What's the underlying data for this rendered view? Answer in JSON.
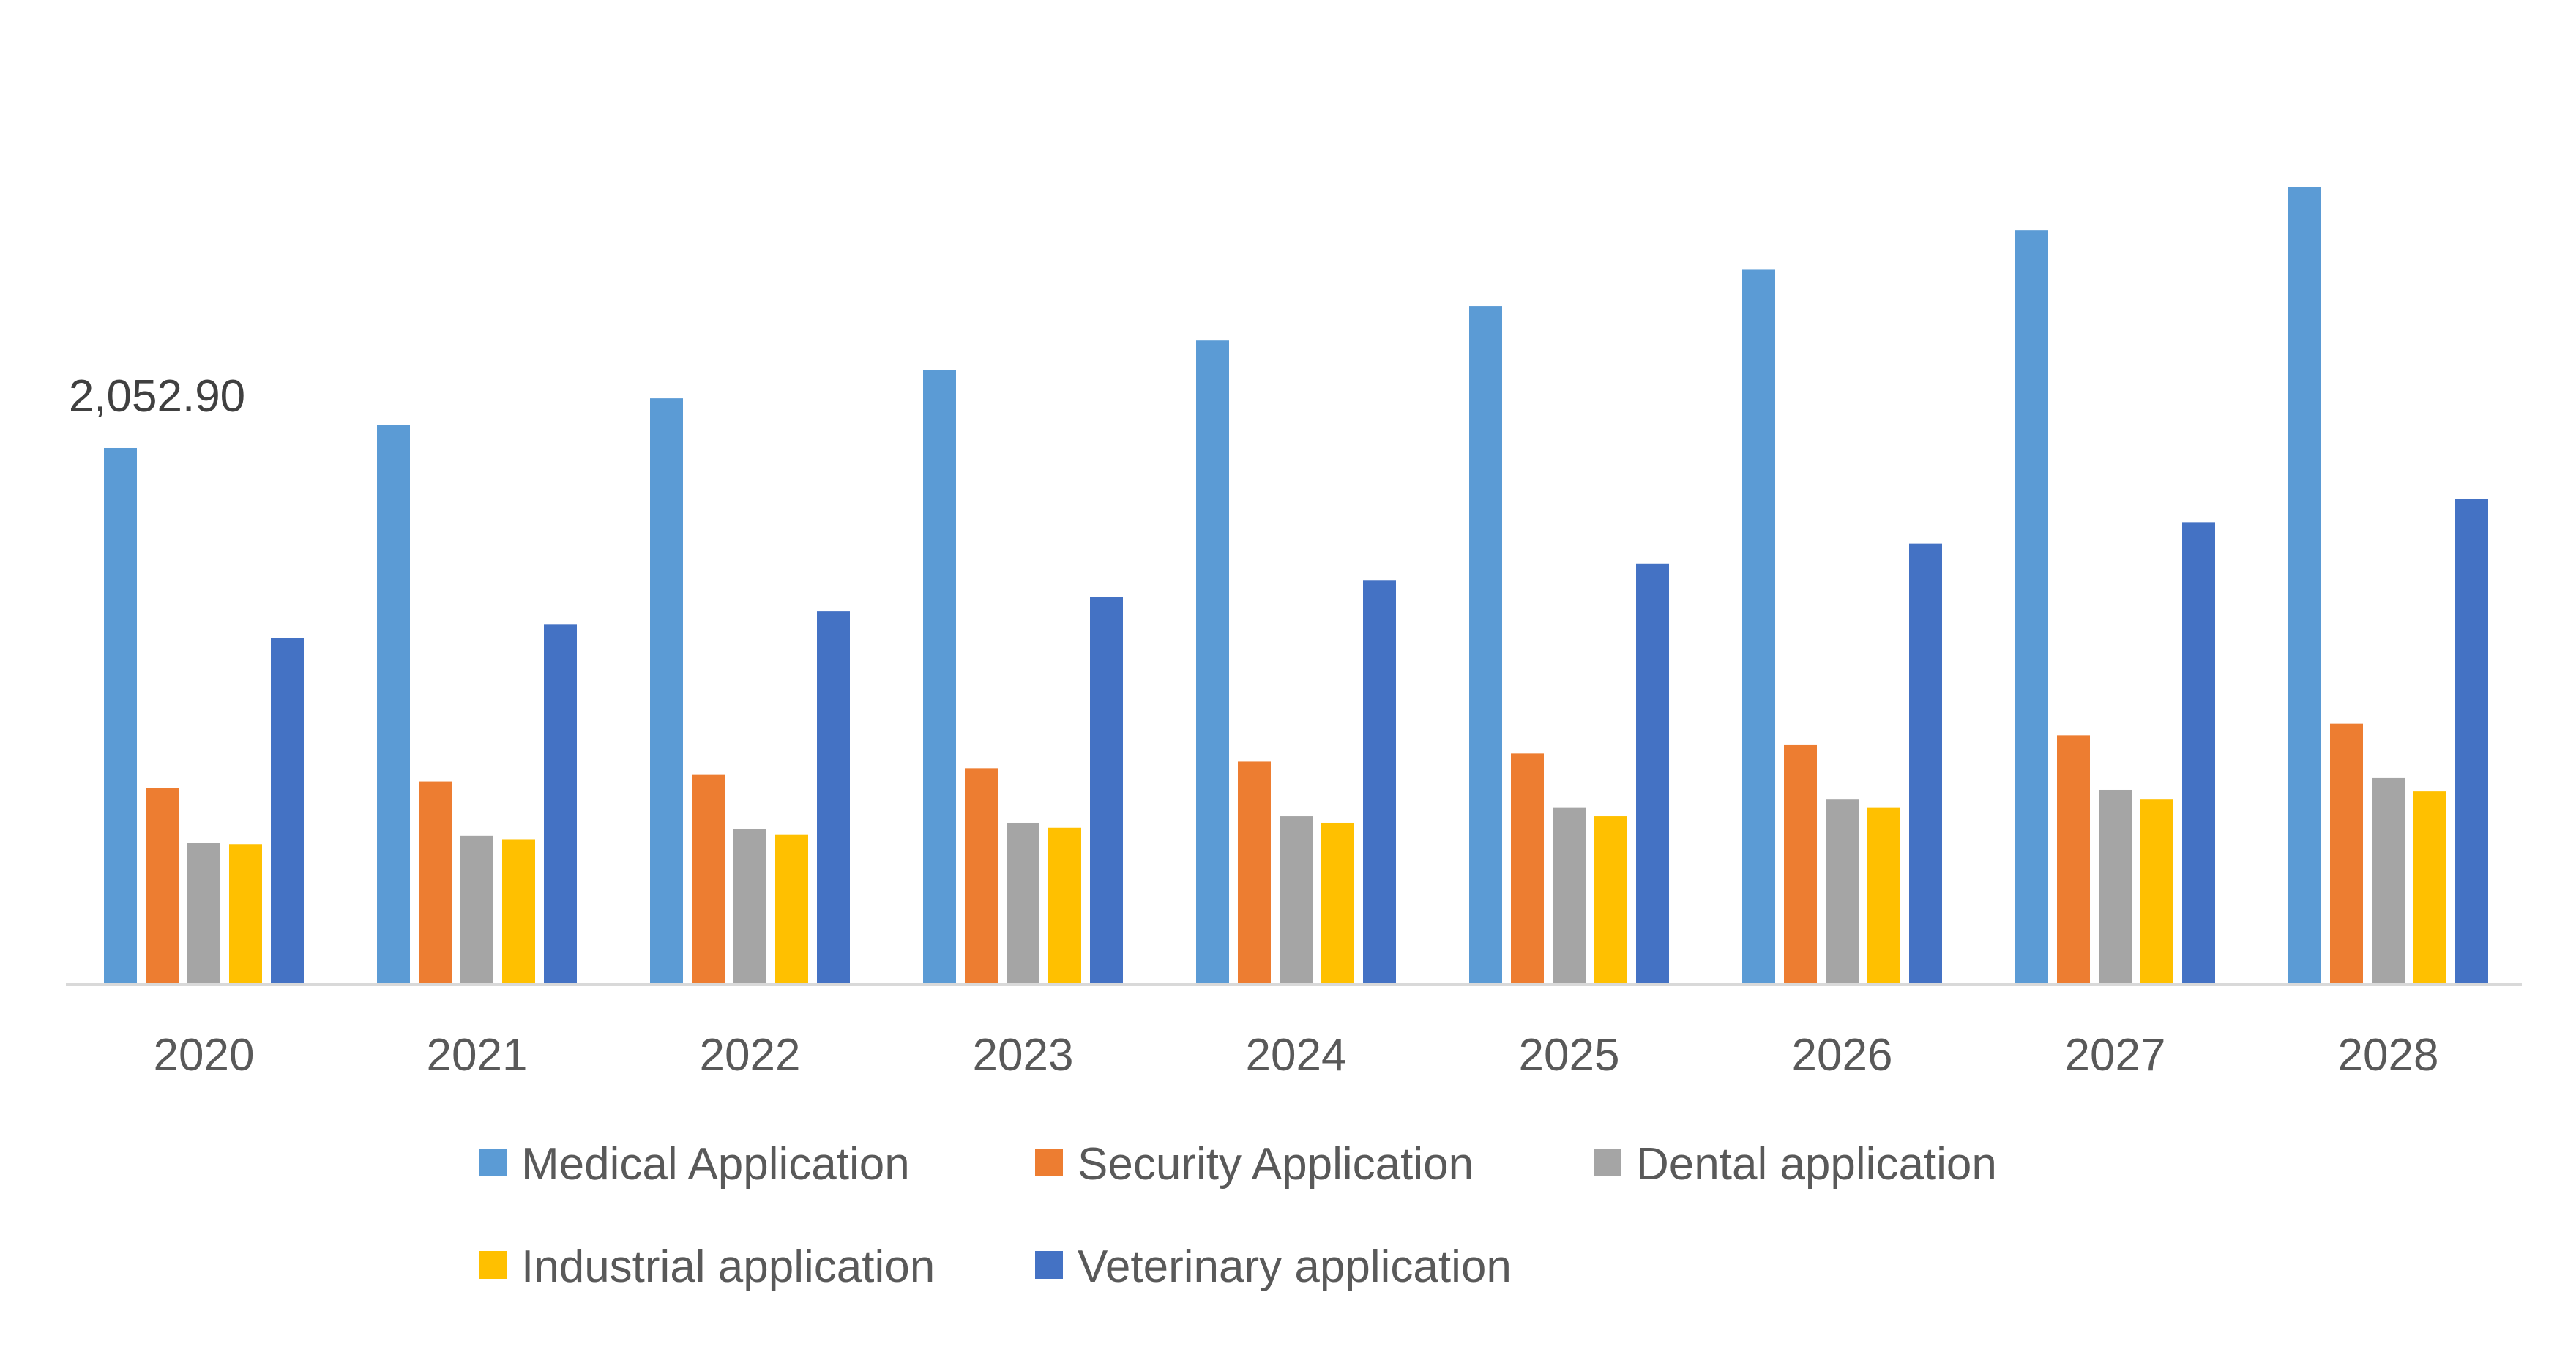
{
  "chart_data": {
    "type": "bar",
    "title": "",
    "xlabel": "",
    "ylabel": "",
    "ylim": [
      0,
      3400
    ],
    "grid": false,
    "legend_position": "bottom",
    "categories": [
      "2020",
      "2021",
      "2022",
      "2023",
      "2024",
      "2025",
      "2026",
      "2027",
      "2028"
    ],
    "series": [
      {
        "name": "Medical Application",
        "color": "#5B9BD5",
        "values": [
          2052.9,
          2141,
          2243,
          2350,
          2464,
          2596,
          2735,
          2887,
          3051
        ]
      },
      {
        "name": "Security Application",
        "color": "#ED7D31",
        "values": [
          752,
          777,
          802,
          828,
          853,
          884,
          916,
          954,
          998
        ]
      },
      {
        "name": "Dental application",
        "color": "#A5A5A5",
        "values": [
          543,
          569,
          594,
          619,
          644,
          676,
          708,
          745,
          790
        ]
      },
      {
        "name": "Industrial application",
        "color": "#FFC000",
        "values": [
          537,
          556,
          575,
          600,
          619,
          644,
          676,
          708,
          739
        ]
      },
      {
        "name": "Veterinary application",
        "color": "#4472C4",
        "values": [
          1327,
          1377,
          1428,
          1484,
          1548,
          1611,
          1687,
          1769,
          1857
        ]
      }
    ],
    "data_labels": [
      {
        "series": 0,
        "category": "2020",
        "text": "2,052.90"
      }
    ]
  }
}
